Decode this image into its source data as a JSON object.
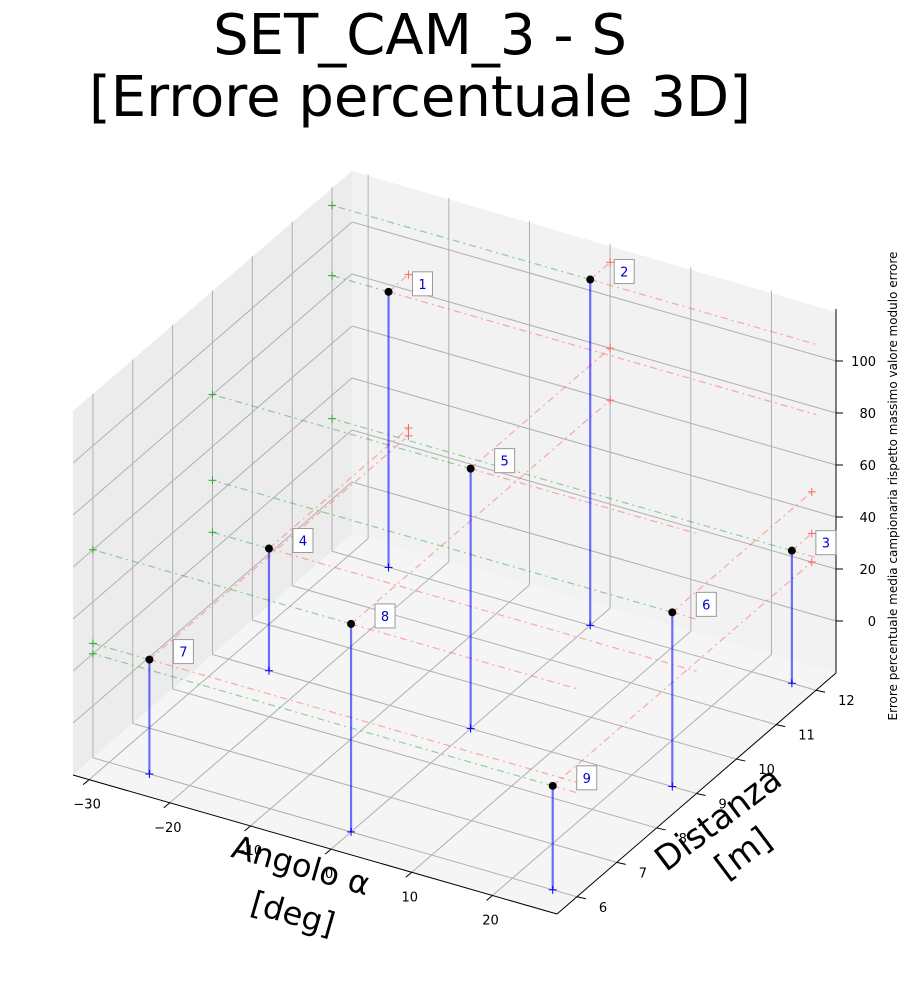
{
  "title": {
    "line1": "SET_CAM_3 - S",
    "line2": "[Errore percentuale 3D]"
  },
  "chart_data": {
    "type": "scatter",
    "projection": "3d",
    "xlabel": "Angolo α\n[deg]",
    "ylabel": "Distanza\n[m]",
    "zlabel": "Errore percentuale media campionaria rispetto massimo valore modulo errore",
    "x_ticks": [
      "−30",
      "−20",
      "−10",
      "0",
      "10",
      "20"
    ],
    "y_ticks": [
      "6",
      "7",
      "8",
      "9",
      "10",
      "11",
      "12"
    ],
    "z_ticks": [
      "0",
      "20",
      "40",
      "60",
      "80",
      "100"
    ],
    "xlim": [
      -32,
      28
    ],
    "ylim": [
      5.5,
      12.5
    ],
    "zlim": [
      -20,
      120
    ],
    "grid": true,
    "colors": {
      "point": "#000000",
      "stem": "#0000ff",
      "label": "#0000cc",
      "x_projection": "#ff6666",
      "y_projection": "#33aa33"
    },
    "points": [
      {
        "label": "1",
        "x": -25,
        "y": 12,
        "z": 86
      },
      {
        "label": "2",
        "x": 0,
        "y": 12,
        "z": 113
      },
      {
        "label": "3",
        "x": 25,
        "y": 12,
        "z": 31
      },
      {
        "label": "4",
        "x": -25,
        "y": 9,
        "z": 27
      },
      {
        "label": "5",
        "x": 0,
        "y": 9,
        "z": 80
      },
      {
        "label": "6",
        "x": 25,
        "y": 9,
        "z": 47
      },
      {
        "label": "7",
        "x": -25,
        "y": 6,
        "z": 24
      },
      {
        "label": "8",
        "x": 0,
        "y": 6,
        "z": 60
      },
      {
        "label": "9",
        "x": 25,
        "y": 6,
        "z": 20
      }
    ]
  }
}
